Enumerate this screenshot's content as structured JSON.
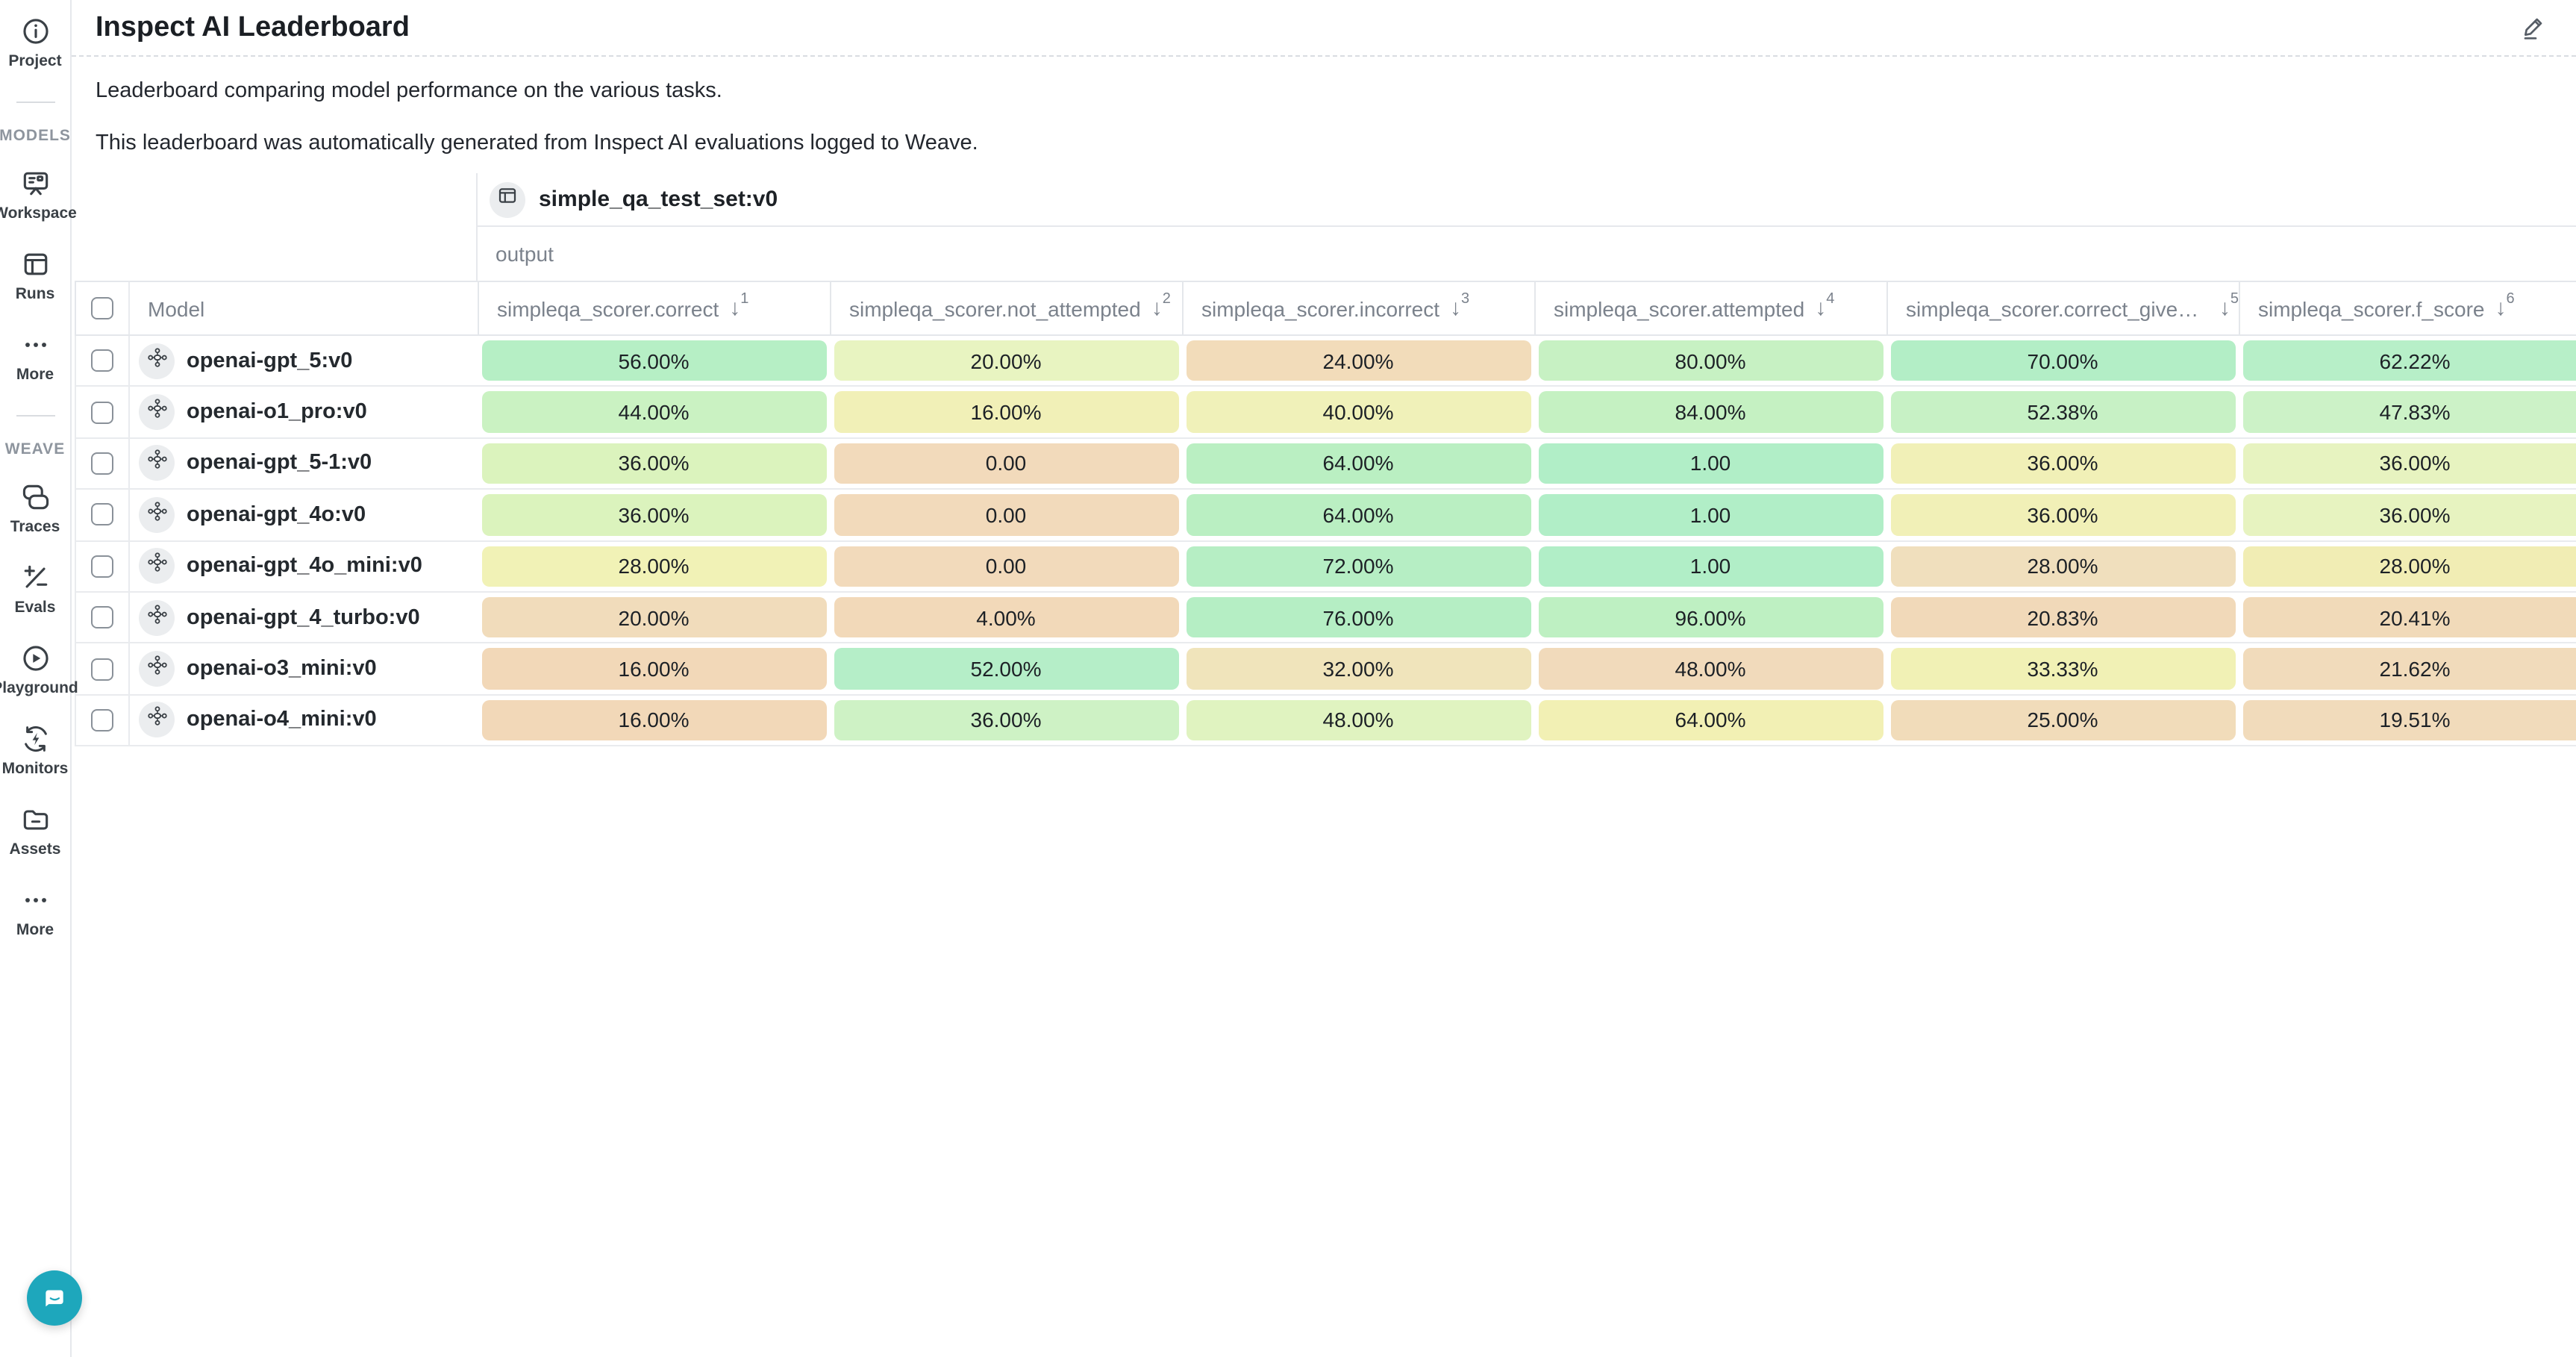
{
  "header": {
    "title": "Inspect AI Leaderboard"
  },
  "description": {
    "line1": "Leaderboard comparing model performance on the various tasks.",
    "line2": "This leaderboard was automatically generated from Inspect AI evaluations logged to Weave."
  },
  "sidebar": {
    "project_label": "Project",
    "models_section": "MODELS",
    "workspace_label": "Workspace",
    "runs_label": "Runs",
    "more_models_label": "More",
    "weave_section": "WEAVE",
    "traces_label": "Traces",
    "evals_label": "Evals",
    "playground_label": "Playground",
    "monitors_label": "Monitors",
    "assets_label": "Assets",
    "more_weave_label": "More"
  },
  "table": {
    "dataset_name": "simple_qa_test_set:v0",
    "group_label": "output",
    "model_column_label": "Model",
    "sort_arrow": "↓",
    "columns": [
      {
        "label": "simpleqa_scorer.correct",
        "sort_rank": "1"
      },
      {
        "label": "simpleqa_scorer.not_attempted",
        "sort_rank": "2"
      },
      {
        "label": "simpleqa_scorer.incorrect",
        "sort_rank": "3"
      },
      {
        "label": "simpleqa_scorer.attempted",
        "sort_rank": "4"
      },
      {
        "label": "simpleqa_scorer.correct_given_at...",
        "sort_rank": "5"
      },
      {
        "label": "simpleqa_scorer.f_score",
        "sort_rank": "6"
      }
    ],
    "rows": [
      {
        "model": "openai-gpt_5:v0",
        "values": [
          "56.00%",
          "20.00%",
          "24.00%",
          "80.00%",
          "70.00%",
          "62.22%"
        ],
        "cell_colors": [
          "#b6efc5",
          "#e8f4c1",
          "#f2dcba",
          "#c7f1c3",
          "#b3eec6",
          "#b7efc8"
        ]
      },
      {
        "model": "openai-o1_pro:v0",
        "values": [
          "44.00%",
          "16.00%",
          "40.00%",
          "84.00%",
          "52.38%",
          "47.83%"
        ],
        "cell_colors": [
          "#caf2c2",
          "#f1f0b7",
          "#f0f1b9",
          "#c5f1c2",
          "#c7f1c5",
          "#ccf2c7"
        ]
      },
      {
        "model": "openai-gpt_5-1:v0",
        "values": [
          "36.00%",
          "0.00",
          "64.00%",
          "1.00",
          "36.00%",
          "36.00%"
        ],
        "cell_colors": [
          "#dbf3bd",
          "#f2dabb",
          "#baefc2",
          "#b1eec7",
          "#f1f0b7",
          "#e7f3c0"
        ]
      },
      {
        "model": "openai-gpt_4o:v0",
        "values": [
          "36.00%",
          "0.00",
          "64.00%",
          "1.00",
          "36.00%",
          "36.00%"
        ],
        "cell_colors": [
          "#dbf3bd",
          "#f2dabb",
          "#baefc2",
          "#b1eec7",
          "#f1f0b7",
          "#e7f3c0"
        ]
      },
      {
        "model": "openai-gpt_4o_mini:v0",
        "values": [
          "28.00%",
          "0.00",
          "72.00%",
          "1.00",
          "28.00%",
          "28.00%"
        ],
        "cell_colors": [
          "#f1f2b6",
          "#f2dabb",
          "#b6eec4",
          "#b1eec7",
          "#f0dfbd",
          "#f1edb4"
        ]
      },
      {
        "model": "openai-gpt_4_turbo:v0",
        "values": [
          "20.00%",
          "4.00%",
          "76.00%",
          "96.00%",
          "20.83%",
          "20.41%"
        ],
        "cell_colors": [
          "#f1dcbb",
          "#f2d9b9",
          "#b5eec4",
          "#bef0c2",
          "#f1d9b9",
          "#f1dab9"
        ]
      },
      {
        "model": "openai-o3_mini:v0",
        "values": [
          "16.00%",
          "52.00%",
          "32.00%",
          "48.00%",
          "33.33%",
          "21.62%"
        ],
        "cell_colors": [
          "#f2d8b8",
          "#b5eec8",
          "#f0e4bb",
          "#f1dabb",
          "#f1f1b5",
          "#f1dbbb"
        ]
      },
      {
        "model": "openai-o4_mini:v0",
        "values": [
          "16.00%",
          "36.00%",
          "48.00%",
          "64.00%",
          "25.00%",
          "19.51%"
        ],
        "cell_colors": [
          "#f2d8b8",
          "#cef2c5",
          "#e0f3c0",
          "#f2f0b4",
          "#f1dcba",
          "#f1dbbb"
        ]
      }
    ]
  },
  "colors": {
    "chat_button": "#1ea7bc",
    "border": "#e6e8ec",
    "muted_text": "#7b828c",
    "dark_text": "#1d2126",
    "scale_high_green": "#b1eec7",
    "scale_mid_yellow": "#f1f0b7",
    "scale_low_orange": "#f2d8b8"
  }
}
